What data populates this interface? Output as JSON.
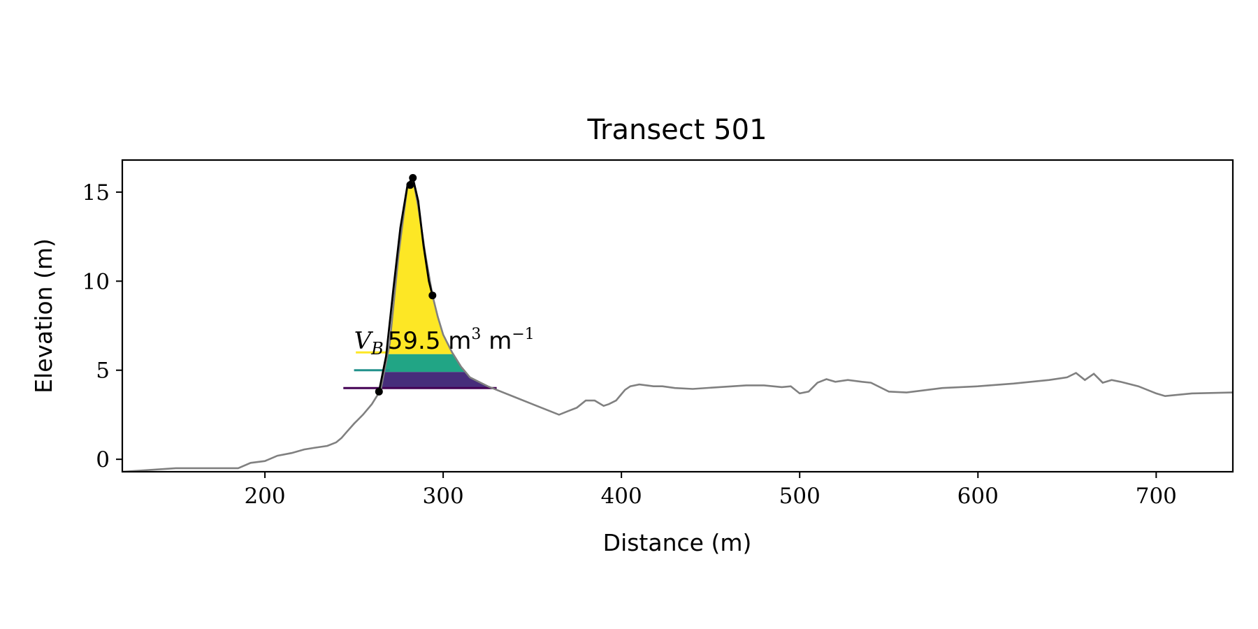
{
  "chart_data": {
    "type": "line",
    "title": "Transect 501",
    "xlabel": "Distance (m)",
    "ylabel": "Elevation (m)",
    "xlim": [
      120,
      743
    ],
    "ylim": [
      -0.7,
      16.8
    ],
    "xticks": [
      200,
      300,
      400,
      500,
      600,
      700
    ],
    "yticks": [
      0,
      5,
      10,
      15
    ],
    "grid": false,
    "colors": {
      "profile": "#808080",
      "dune_outline": "#000000",
      "fill_top": "#fde725",
      "fill_mid": "#21a585",
      "fill_low": "#472d7b",
      "level_top": "#fde725",
      "level_mid": "#21918c",
      "level_low": "#440154"
    },
    "profile": {
      "x": [
        120,
        150,
        185,
        192,
        200,
        207,
        215,
        222,
        228,
        235,
        240,
        243,
        246,
        250,
        255,
        260,
        265,
        270,
        275,
        280,
        283,
        286,
        290,
        294,
        297,
        300,
        305,
        310,
        315,
        320,
        325,
        330,
        340,
        350,
        360,
        365,
        370,
        375,
        380,
        385,
        390,
        393,
        397,
        402,
        405,
        410,
        418,
        423,
        430,
        440,
        455,
        470,
        480,
        490,
        495,
        500,
        505,
        510,
        515,
        520,
        527,
        535,
        540,
        550,
        560,
        580,
        600,
        620,
        640,
        650,
        655,
        660,
        665,
        670,
        675,
        680,
        690,
        700,
        705,
        720,
        743
      ],
      "y": [
        -0.7,
        -0.5,
        -0.5,
        -0.2,
        -0.1,
        0.2,
        0.35,
        0.55,
        0.65,
        0.75,
        0.95,
        1.2,
        1.55,
        2.0,
        2.5,
        3.1,
        3.9,
        6.5,
        11.5,
        15.4,
        15.8,
        14.2,
        11.5,
        9.2,
        8.0,
        7.0,
        6.0,
        5.2,
        4.6,
        4.35,
        4.1,
        3.9,
        3.5,
        3.1,
        2.7,
        2.5,
        2.7,
        2.9,
        3.3,
        3.3,
        3.0,
        3.1,
        3.3,
        3.9,
        4.1,
        4.2,
        4.1,
        4.1,
        4.0,
        3.95,
        4.05,
        4.15,
        4.15,
        4.05,
        4.1,
        3.7,
        3.8,
        4.3,
        4.5,
        4.35,
        4.45,
        4.35,
        4.3,
        3.8,
        3.75,
        4.0,
        4.1,
        4.25,
        4.45,
        4.6,
        4.85,
        4.45,
        4.8,
        4.3,
        4.45,
        4.35,
        4.1,
        3.7,
        3.55,
        3.7,
        3.75
      ]
    },
    "dune_outline": {
      "x": [
        264,
        268,
        272,
        276,
        280,
        283,
        286,
        289,
        292,
        294
      ],
      "y": [
        3.8,
        5.8,
        9.5,
        13.0,
        15.4,
        15.8,
        14.5,
        12.0,
        10.0,
        9.2
      ]
    },
    "key_points": {
      "x": [
        264,
        281.5,
        283,
        294
      ],
      "y": [
        3.8,
        15.4,
        15.8,
        9.2
      ]
    },
    "volume_fills": [
      {
        "level": "top",
        "y_min": 5.9,
        "y_max": 15.8
      },
      {
        "level": "mid",
        "y_min": 4.9,
        "y_max": 5.9
      },
      {
        "level": "low",
        "y_min": 3.95,
        "y_max": 4.9
      }
    ],
    "levels": [
      {
        "name": "top",
        "y": 6.0,
        "x_start": 251,
        "x_end": 271
      },
      {
        "name": "mid",
        "y": 5.0,
        "x_start": 250,
        "x_end": 270
      },
      {
        "name": "low",
        "y": 4.0,
        "x_start": 244,
        "x_end": 330
      }
    ],
    "annotation": {
      "text_main": "V",
      "text_sub": "B",
      "text_value": "59.5 m",
      "text_exp1": "3",
      "text_unit": " m",
      "text_exp2": "−1",
      "x": 250,
      "y": 6.2
    }
  }
}
